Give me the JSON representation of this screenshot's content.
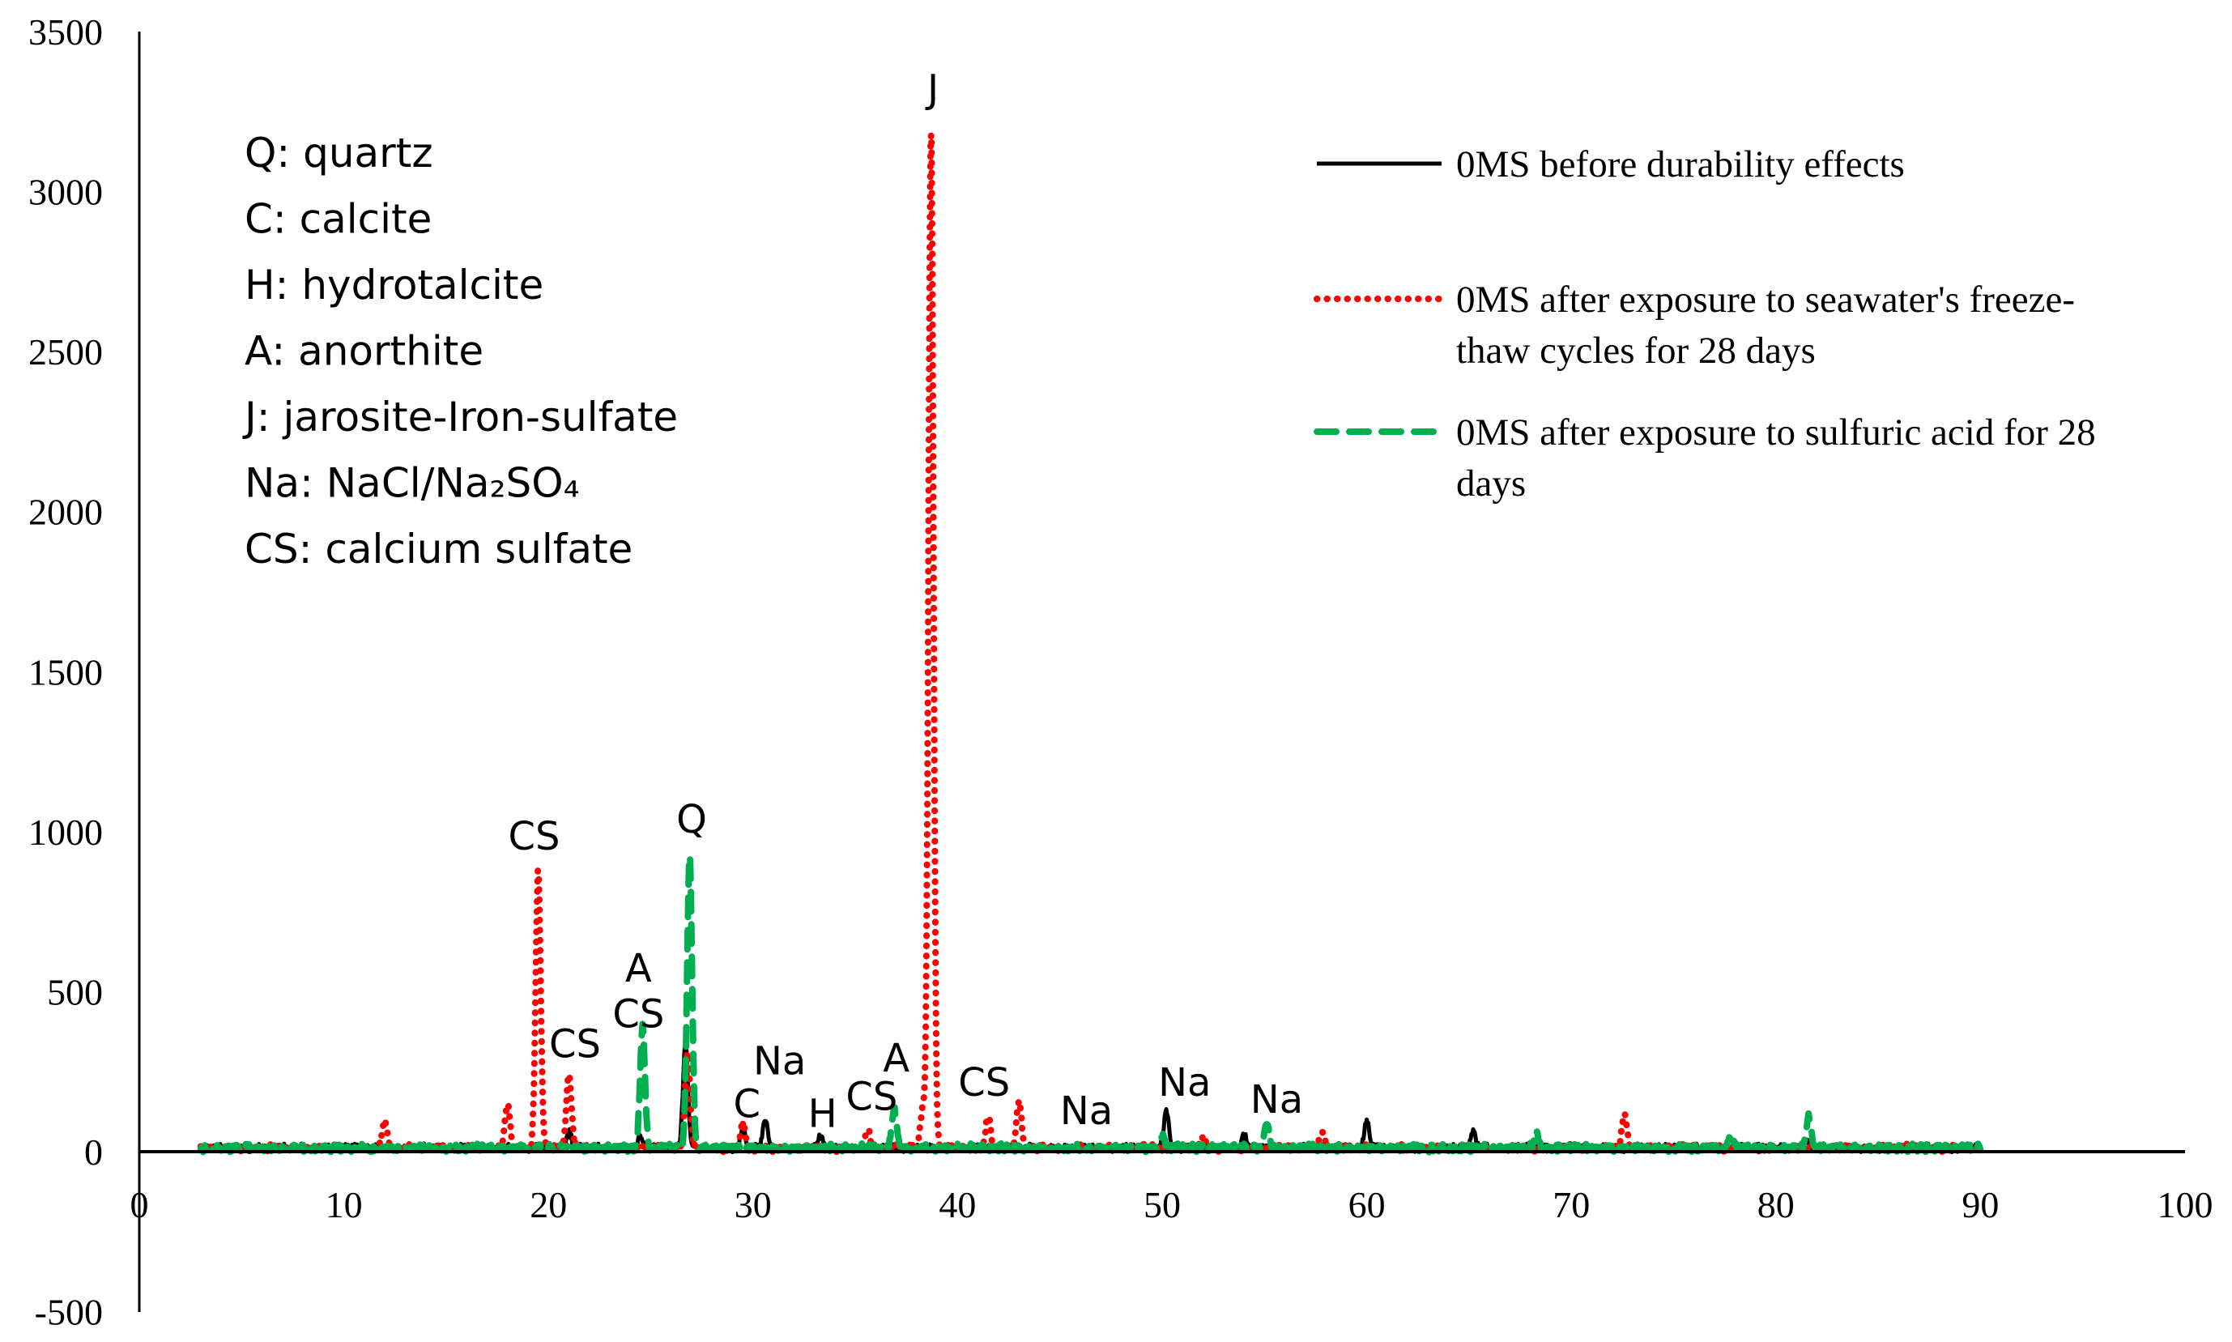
{
  "chart_data": {
    "type": "line",
    "title": "",
    "xlabel": "",
    "ylabel": "",
    "xlim": [
      0,
      100
    ],
    "ylim": [
      -500,
      3500
    ],
    "x_ticks": [
      0,
      10,
      20,
      30,
      40,
      50,
      60,
      70,
      80,
      90,
      100
    ],
    "y_ticks": [
      -500,
      0,
      500,
      1000,
      1500,
      2000,
      2500,
      3000,
      3500
    ],
    "grid": false,
    "legend_placement": "top-right",
    "x_range_of_data": [
      3,
      90
    ],
    "series": [
      {
        "name": "0MS before durability effects",
        "legend_lines": [
          "0MS before durability effects"
        ],
        "color": "#000000",
        "style": "solid",
        "peaks": [
          [
            21.0,
            50
          ],
          [
            24.5,
            40
          ],
          [
            26.7,
            330
          ],
          [
            29.5,
            60
          ],
          [
            30.6,
            90
          ],
          [
            33.3,
            40
          ],
          [
            50.2,
            120
          ],
          [
            54.0,
            40
          ],
          [
            60.0,
            90
          ],
          [
            65.2,
            50
          ],
          [
            81.5,
            25
          ]
        ]
      },
      {
        "name": "0MS after exposure to seawater's freeze-thaw cycles for 28 days",
        "legend_lines": [
          "0MS after exposure to seawater's freeze-",
          "thaw cycles for 28 days"
        ],
        "color": "#ff0000",
        "style": "dotted",
        "peaks": [
          [
            12.0,
            80
          ],
          [
            18.0,
            140
          ],
          [
            19.5,
            880
          ],
          [
            21.0,
            230
          ],
          [
            26.8,
            300
          ],
          [
            29.5,
            80
          ],
          [
            35.6,
            60
          ],
          [
            38.3,
            120
          ],
          [
            38.7,
            3200
          ],
          [
            41.5,
            100
          ],
          [
            43.0,
            150
          ],
          [
            52.0,
            40
          ],
          [
            57.8,
            50
          ],
          [
            72.6,
            100
          ]
        ]
      },
      {
        "name": "0MS after exposure to sulfuric acid for 28 days",
        "legend_lines": [
          "0MS after exposure to sulfuric acid for 28",
          "days"
        ],
        "color": "#00b050",
        "style": "dashed",
        "peaks": [
          [
            24.6,
            380
          ],
          [
            26.9,
            920
          ],
          [
            36.9,
            120
          ],
          [
            50.0,
            40
          ],
          [
            55.1,
            80
          ],
          [
            68.3,
            40
          ],
          [
            77.8,
            40
          ],
          [
            81.6,
            100
          ]
        ]
      }
    ],
    "annotations": [
      {
        "text": "J",
        "x": 38.8,
        "y": 3322
      },
      {
        "text": "CS",
        "x": 19.3,
        "y": 987
      },
      {
        "text": "Q",
        "x": 27.0,
        "y": 1040
      },
      {
        "text": "A",
        "x": 24.4,
        "y": 574
      },
      {
        "text": "CS",
        "x": 24.4,
        "y": 431
      },
      {
        "text": "CS",
        "x": 21.3,
        "y": 338
      },
      {
        "text": "Na",
        "x": 31.3,
        "y": 285
      },
      {
        "text": "C",
        "x": 29.7,
        "y": 151
      },
      {
        "text": "H",
        "x": 33.4,
        "y": 120
      },
      {
        "text": "CS",
        "x": 35.8,
        "y": 173
      },
      {
        "text": "A",
        "x": 37.0,
        "y": 293
      },
      {
        "text": "CS",
        "x": 41.3,
        "y": 218
      },
      {
        "text": "Na",
        "x": 46.3,
        "y": 129
      },
      {
        "text": "Na",
        "x": 51.1,
        "y": 218
      },
      {
        "text": "Na",
        "x": 55.6,
        "y": 165
      }
    ],
    "phase_key": [
      "Q: quartz",
      "C: calcite",
      "H: hydrotalcite",
      "A: anorthite",
      "J: jarosite-Iron-sulfate",
      "Na: NaCl/Na₂SO₄",
      "CS: calcium sulfate"
    ]
  }
}
